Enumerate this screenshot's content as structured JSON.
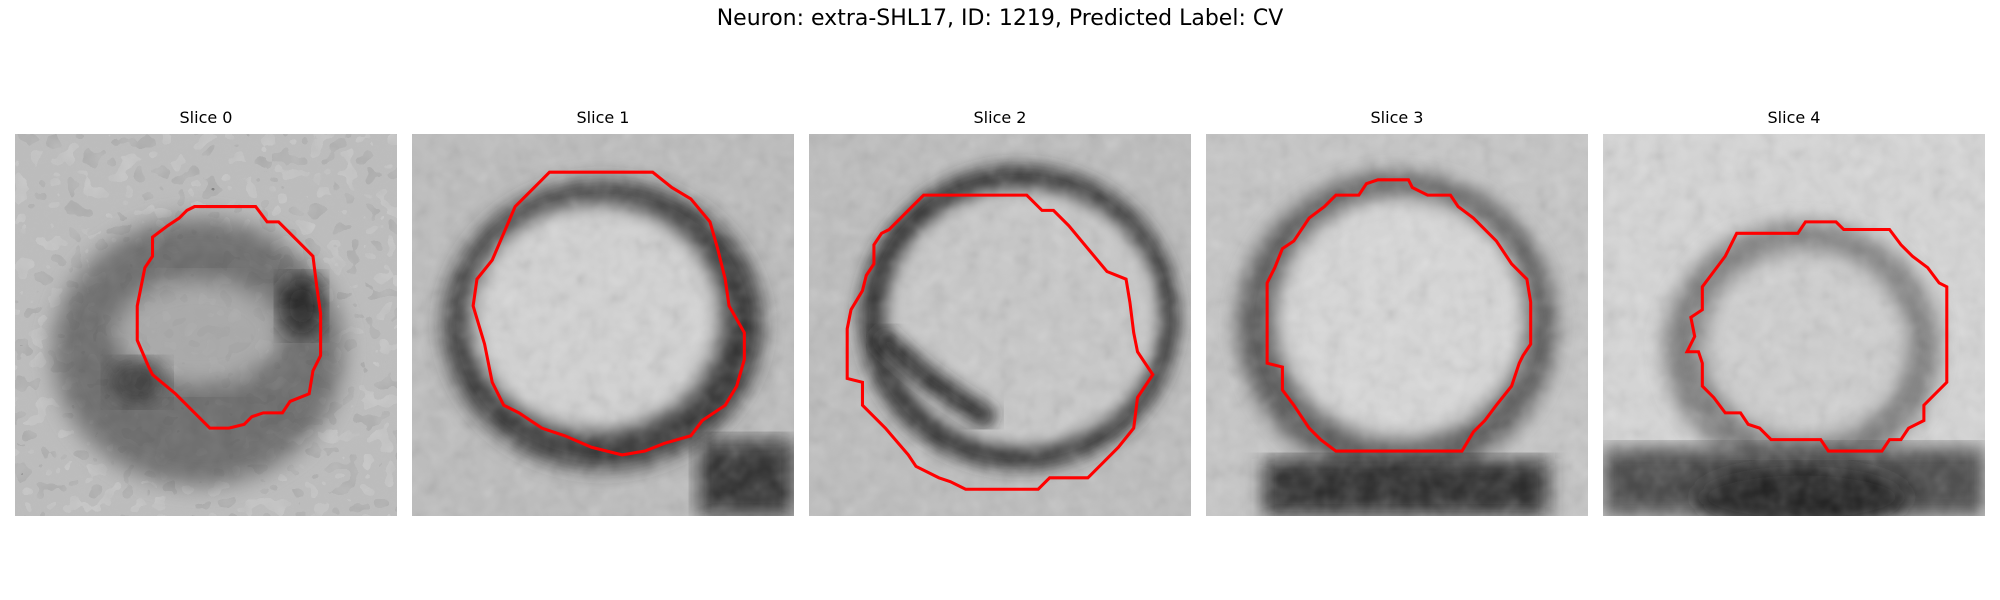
{
  "title": "Neuron: extra-SHL17, ID: 1219, Predicted Label: CV",
  "colors": {
    "contour": "#ff0000",
    "background": "#ffffff"
  },
  "panels": [
    {
      "label": "Slice 0"
    },
    {
      "label": "Slice 1"
    },
    {
      "label": "Slice 2"
    },
    {
      "label": "Slice 3"
    },
    {
      "label": "Slice 4"
    }
  ]
}
